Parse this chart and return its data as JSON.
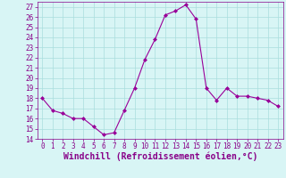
{
  "x": [
    0,
    1,
    2,
    3,
    4,
    5,
    6,
    7,
    8,
    9,
    10,
    11,
    12,
    13,
    14,
    15,
    16,
    17,
    18,
    19,
    20,
    21,
    22,
    23
  ],
  "y": [
    18.0,
    16.8,
    16.5,
    16.0,
    16.0,
    15.2,
    14.4,
    14.6,
    16.8,
    19.0,
    21.8,
    23.8,
    26.2,
    26.6,
    27.2,
    25.8,
    19.0,
    17.8,
    19.0,
    18.2,
    18.2,
    18.0,
    17.8,
    17.2
  ],
  "line_color": "#990099",
  "marker": "D",
  "marker_size": 2,
  "background_color": "#d8f5f5",
  "grid_color": "#aadddd",
  "xlabel": "Windchill (Refroidissement éolien,°C)",
  "xlabel_fontsize": 7,
  "ylim": [
    14,
    27.5
  ],
  "xlim": [
    -0.5,
    23.5
  ],
  "yticks": [
    14,
    15,
    16,
    17,
    18,
    19,
    20,
    21,
    22,
    23,
    24,
    25,
    26,
    27
  ],
  "xticks": [
    0,
    1,
    2,
    3,
    4,
    5,
    6,
    7,
    8,
    9,
    10,
    11,
    12,
    13,
    14,
    15,
    16,
    17,
    18,
    19,
    20,
    21,
    22,
    23
  ],
  "tick_fontsize": 5.5,
  "spine_color": "#880088",
  "line_width": 0.8
}
